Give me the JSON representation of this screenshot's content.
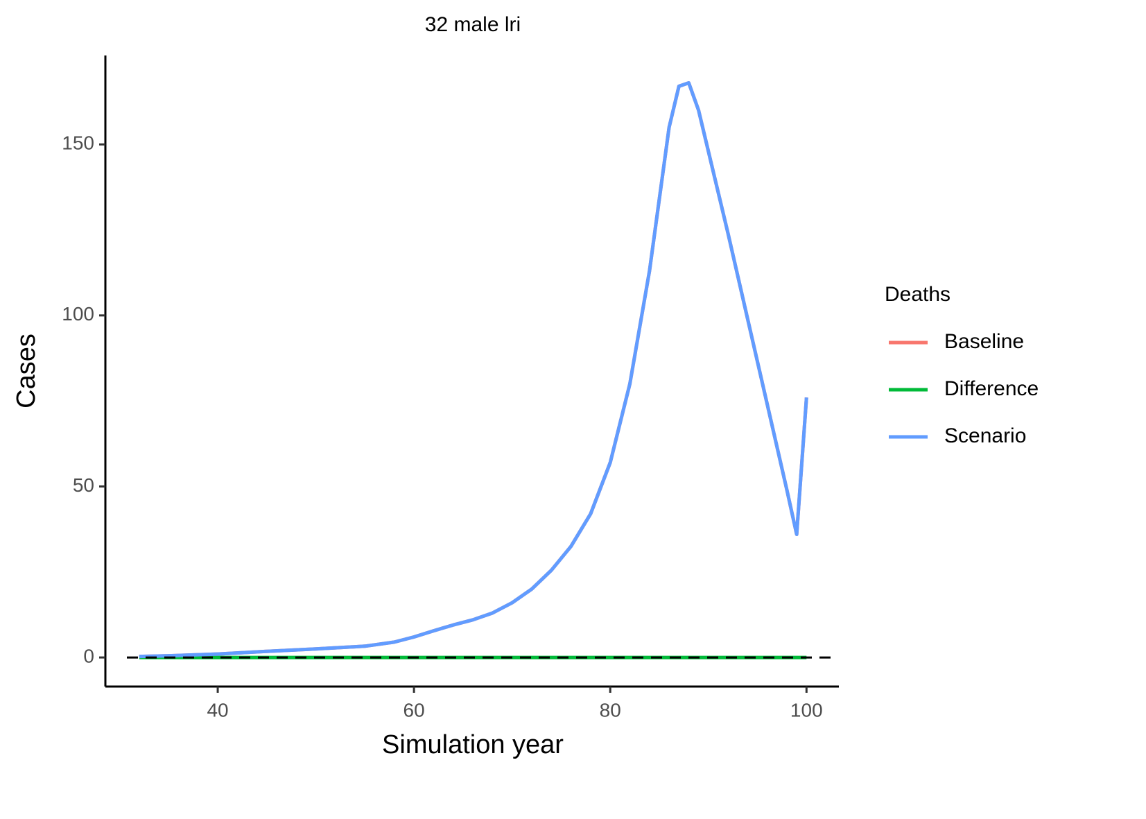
{
  "chart_data": {
    "type": "line",
    "title": "32 male lri",
    "x_label": "Simulation year",
    "y_label": "Cases",
    "legend_title": "Deaths",
    "legend": "right",
    "x": [
      32,
      35,
      40,
      45,
      50,
      55,
      58,
      60,
      62,
      64,
      66,
      68,
      70,
      72,
      74,
      76,
      78,
      80,
      82,
      84,
      86,
      87,
      88,
      89,
      90,
      92,
      94,
      96,
      98,
      99,
      100
    ],
    "series": [
      {
        "name": "Baseline",
        "color": "#f8766d",
        "values": [
          0.3,
          0.5,
          1,
          1.8,
          2.5,
          3.3,
          4.5,
          6,
          7.8,
          9.5,
          11,
          13,
          16,
          20,
          25.5,
          32.5,
          42,
          57,
          80,
          113,
          155,
          167,
          168,
          160,
          148,
          124,
          99,
          74,
          49,
          36,
          76
        ]
      },
      {
        "name": "Difference",
        "color": "#00ba38",
        "values": [
          0,
          0,
          0,
          0,
          0,
          0,
          0,
          0,
          0,
          0,
          0,
          0,
          0,
          0,
          0,
          0,
          0,
          0,
          0,
          0,
          0,
          0,
          0,
          0,
          0,
          0,
          0,
          0,
          0,
          0,
          0
        ]
      },
      {
        "name": "Scenario",
        "color": "#619cff",
        "values": [
          0.3,
          0.5,
          1,
          1.8,
          2.5,
          3.3,
          4.5,
          6,
          7.8,
          9.5,
          11,
          13,
          16,
          20,
          25.5,
          32.5,
          42,
          57,
          80,
          113,
          155,
          167,
          168,
          160,
          148,
          124,
          99,
          74,
          49,
          36,
          76
        ]
      }
    ],
    "hline": 0,
    "xlim": [
      28.55,
      103.3
    ],
    "ylim": [
      -8.5,
      176
    ],
    "xticks": [
      40,
      60,
      80,
      100
    ],
    "yticks": [
      0,
      50,
      100,
      150
    ],
    "grid": false
  }
}
